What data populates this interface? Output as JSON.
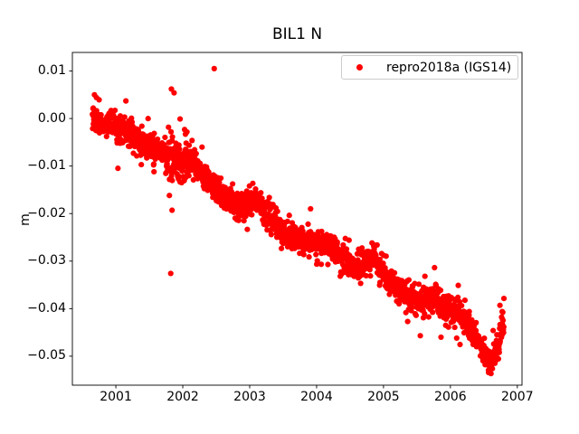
{
  "figure": {
    "background": "#ffffff",
    "text_color": "#000000",
    "spine_color": "#000000"
  },
  "chart_data": {
    "type": "scatter",
    "title": "BIL1 N",
    "xlabel": "",
    "ylabel": "m",
    "grid": false,
    "xlim": [
      2000.35,
      2007.07
    ],
    "ylim": [
      -0.0561,
      0.0139
    ],
    "xticks": [
      2001,
      2002,
      2003,
      2004,
      2005,
      2006,
      2007
    ],
    "xtick_labels": [
      "2001",
      "2002",
      "2003",
      "2004",
      "2005",
      "2006",
      "2007"
    ],
    "yticks": [
      0.01,
      0.0,
      -0.01,
      -0.02,
      -0.03,
      -0.04,
      -0.05
    ],
    "ytick_labels": [
      "0.01",
      "0.00",
      "−0.01",
      "−0.02",
      "−0.03",
      "−0.04",
      "−0.05"
    ],
    "legend": {
      "position": "upper right",
      "edge_color": "#cccccc",
      "entries": [
        {
          "label": "repro2018a (IGS14)",
          "marker": "dot",
          "marker_color": "#ff0000"
        }
      ]
    },
    "series": [
      {
        "name": "repro2018a (IGS14)",
        "color": "#ff0000",
        "marker": "dot",
        "marker_radius_px": 3.1,
        "t_start": 2000.65,
        "t_end": 2006.8,
        "n_points": 2100,
        "noise_sd": 0.00135,
        "extra_noise_window": [
          2001.74,
          2002.1,
          1.8
        ],
        "heavy_tail_fraction": 0.07,
        "heavy_tail_factor": 1.9,
        "seed": 7,
        "trend": [
          [
            2000.65,
            0.0002
          ],
          [
            2000.75,
            -0.0004
          ],
          [
            2000.85,
            -0.0009
          ],
          [
            2000.95,
            -0.0013
          ],
          [
            2001.05,
            -0.0018
          ],
          [
            2001.16,
            -0.0026
          ],
          [
            2001.28,
            -0.004
          ],
          [
            2001.38,
            -0.0052
          ],
          [
            2001.48,
            -0.0056
          ],
          [
            2001.58,
            -0.0061
          ],
          [
            2001.7,
            -0.0068
          ],
          [
            2001.82,
            -0.0075
          ],
          [
            2001.9,
            -0.0083
          ],
          [
            2001.97,
            -0.0089
          ],
          [
            2002.08,
            -0.0086
          ],
          [
            2002.18,
            -0.0095
          ],
          [
            2002.3,
            -0.0122
          ],
          [
            2002.4,
            -0.0134
          ],
          [
            2002.5,
            -0.015
          ],
          [
            2002.6,
            -0.0167
          ],
          [
            2002.72,
            -0.0181
          ],
          [
            2002.85,
            -0.0189
          ],
          [
            2002.95,
            -0.0181
          ],
          [
            2003.05,
            -0.0172
          ],
          [
            2003.15,
            -0.018
          ],
          [
            2003.26,
            -0.0206
          ],
          [
            2003.4,
            -0.0223
          ],
          [
            2003.53,
            -0.0241
          ],
          [
            2003.65,
            -0.025
          ],
          [
            2003.78,
            -0.0256
          ],
          [
            2003.93,
            -0.0262
          ],
          [
            2004.05,
            -0.0258
          ],
          [
            2004.16,
            -0.0263
          ],
          [
            2004.28,
            -0.0276
          ],
          [
            2004.4,
            -0.029
          ],
          [
            2004.55,
            -0.0312
          ],
          [
            2004.65,
            -0.0308
          ],
          [
            2004.75,
            -0.03
          ],
          [
            2004.85,
            -0.0291
          ],
          [
            2004.95,
            -0.0315
          ],
          [
            2005.05,
            -0.0336
          ],
          [
            2005.15,
            -0.0352
          ],
          [
            2005.25,
            -0.0366
          ],
          [
            2005.35,
            -0.0374
          ],
          [
            2005.45,
            -0.0379
          ],
          [
            2005.55,
            -0.0386
          ],
          [
            2005.62,
            -0.0387
          ],
          [
            2005.72,
            -0.037
          ],
          [
            2005.8,
            -0.038
          ],
          [
            2005.9,
            -0.0398
          ],
          [
            2006.0,
            -0.0406
          ],
          [
            2006.08,
            -0.0403
          ],
          [
            2006.16,
            -0.0416
          ],
          [
            2006.25,
            -0.0433
          ],
          [
            2006.35,
            -0.0452
          ],
          [
            2006.45,
            -0.048
          ],
          [
            2006.55,
            -0.0503
          ],
          [
            2006.62,
            -0.0512
          ],
          [
            2006.68,
            -0.0499
          ],
          [
            2006.73,
            -0.0468
          ],
          [
            2006.77,
            -0.0438
          ],
          [
            2006.8,
            -0.041
          ]
        ],
        "outliers": [
          [
            2000.68,
            0.005
          ],
          [
            2000.71,
            0.0044
          ],
          [
            2001.15,
            0.0037
          ],
          [
            2001.83,
            0.0062
          ],
          [
            2001.87,
            0.0054
          ],
          [
            2001.8,
            -0.0162
          ],
          [
            2001.84,
            -0.0193
          ],
          [
            2001.82,
            -0.0326
          ],
          [
            2001.96,
            -0.0001
          ],
          [
            2002.04,
            -0.0033
          ],
          [
            2002.47,
            0.0105
          ],
          [
            2001.38,
            -0.0097
          ],
          [
            2001.57,
            -0.0112
          ],
          [
            2001.91,
            -0.0116
          ],
          [
            2003.91,
            -0.019
          ],
          [
            2005.55,
            -0.0457
          ],
          [
            2006.74,
            -0.0393
          ]
        ]
      }
    ]
  }
}
